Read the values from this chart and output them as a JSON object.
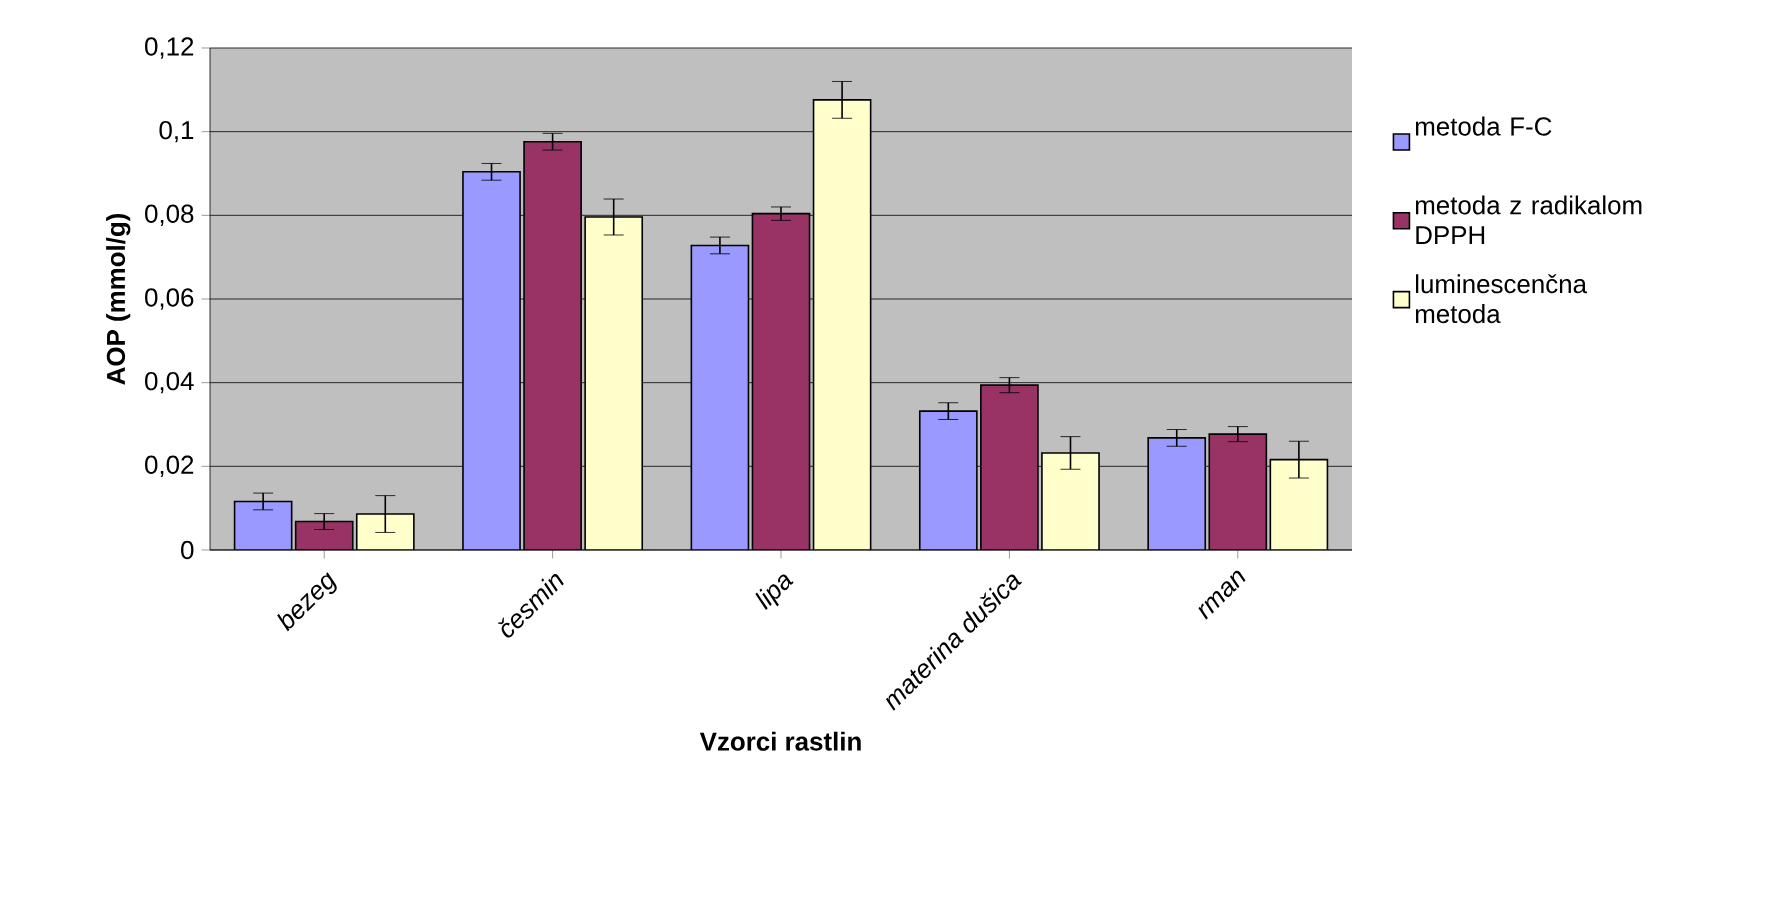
{
  "chart_data": {
    "type": "bar",
    "xlabel": "Vzorci rastlin",
    "ylabel": "AOP (mmol/g)",
    "categories": [
      "bezeg",
      "česmin",
      "lipa",
      "materina dušica",
      "rman"
    ],
    "series": [
      {
        "name": "metoda F-C",
        "color": "#9999ff",
        "values": [
          0.0116,
          0.0904,
          0.0728,
          0.0332,
          0.0268
        ],
        "errors": [
          0.002,
          0.002,
          0.002,
          0.002,
          0.002
        ]
      },
      {
        "name": "metoda z radikalom DPPH",
        "color": "#993366",
        "values": [
          0.0068,
          0.0976,
          0.0804,
          0.0394,
          0.0277
        ],
        "errors": [
          0.0019,
          0.002,
          0.0016,
          0.0018,
          0.0018
        ]
      },
      {
        "name": "luminescenčna metoda",
        "color": "#ffffcc",
        "values": [
          0.0086,
          0.0796,
          0.1076,
          0.0232,
          0.0216
        ],
        "errors": [
          0.0044,
          0.0043,
          0.0044,
          0.0039,
          0.0044
        ]
      }
    ],
    "ylim": [
      0,
      0.12
    ],
    "yticks": [
      0,
      {
        "value": 0.02,
        "label": "0,02"
      },
      {
        "value": 0.04,
        "label": "0,04"
      },
      {
        "value": 0.06,
        "label": "0,06"
      },
      {
        "value": 0.08,
        "label": "0,08"
      },
      {
        "value": 0.1,
        "label": "0,1"
      },
      {
        "value": 0.12,
        "label": "0,12"
      }
    ],
    "grid": "y",
    "legend": "right"
  }
}
